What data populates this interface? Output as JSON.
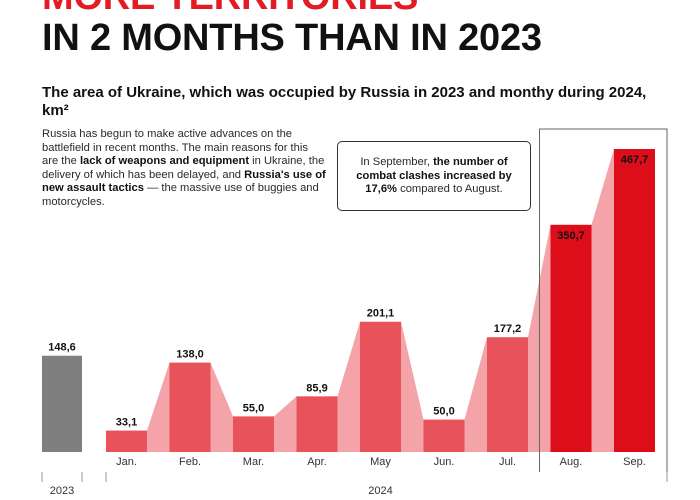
{
  "headline": {
    "line1": "MORE TERRITORIES",
    "line2": "IN 2 MONTHS THAN IN 2023"
  },
  "subtitle": "The area of Ukraine, which was occupied by Russia in 2023 and monthy during 2024, km²",
  "description": {
    "part1": "Russia has begun to make active advances on the battlefield in recent months. The main reasons for this are the ",
    "bold1": "lack of weapons and equipment",
    "part2": " in Ukraine, the delivery of which has been delayed, and ",
    "bold2": "Russia's use of new assault tactics",
    "part3": " — the massive use of buggies and motorcycles."
  },
  "callout": {
    "part1": "In September, ",
    "bold": "the number of combat clashes increased by 17,6%",
    "part2": " compared to August."
  },
  "colors": {
    "year2023_bar": "#7f7f7f",
    "month_bar": "#e8525b",
    "highlight_bar": "#dd0d1a",
    "connector": "#f4a4a8",
    "bracket": "#666666"
  },
  "chart_data": {
    "type": "bar",
    "unit": "km²",
    "ylim": [
      0,
      467.7
    ],
    "groups": [
      {
        "label": "2023",
        "categories": [
          ""
        ],
        "values": [
          148.6
        ],
        "value_labels": [
          "148,6"
        ]
      },
      {
        "label": "2024",
        "categories": [
          "Jan.",
          "Feb.",
          "Mar.",
          "Apr.",
          "May",
          "Jun.",
          "Jul.",
          "Aug.",
          "Sep."
        ],
        "values": [
          33.1,
          138.0,
          55.0,
          85.9,
          201.1,
          50.0,
          177.2,
          350.7,
          467.7
        ],
        "value_labels": [
          "33,1",
          "138,0",
          "55,0",
          "85,9",
          "201,1",
          "50,0",
          "177,2",
          "350,7",
          "467,7"
        ]
      }
    ],
    "highlighted_categories": [
      "Aug.",
      "Sep."
    ]
  }
}
